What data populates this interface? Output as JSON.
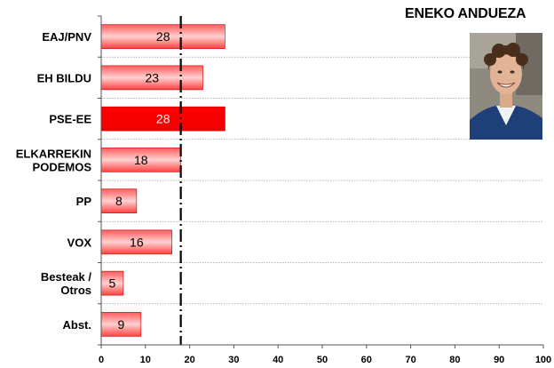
{
  "title": "ENEKO ANDUEZA",
  "chart_data": {
    "type": "bar",
    "orientation": "horizontal",
    "title": "ENEKO ANDUEZA",
    "categories": [
      [
        "EAJ/PNV"
      ],
      [
        "EH BILDU"
      ],
      [
        "PSE-EE"
      ],
      [
        "ELKARREKIN",
        "PODEMOS"
      ],
      [
        "PP"
      ],
      [
        "VOX"
      ],
      [
        "Besteak /",
        "Otros"
      ],
      [
        "Abst."
      ]
    ],
    "values": [
      28,
      23,
      28,
      18,
      8,
      16,
      5,
      9
    ],
    "highlight_index": 2,
    "reference_line": 18,
    "xlim": [
      0,
      100
    ],
    "xticks": [
      0,
      10,
      20,
      30,
      40,
      50,
      60,
      70,
      80,
      90,
      100
    ],
    "grid": "horizontal dotted separators",
    "colors": {
      "bar": "#ff4d4d",
      "bar_light": "#ffc8c8",
      "highlight": "#ff0000",
      "edge": "#cc0000",
      "reference": "#000000"
    }
  },
  "photo": {
    "icon": "portrait-photo"
  }
}
